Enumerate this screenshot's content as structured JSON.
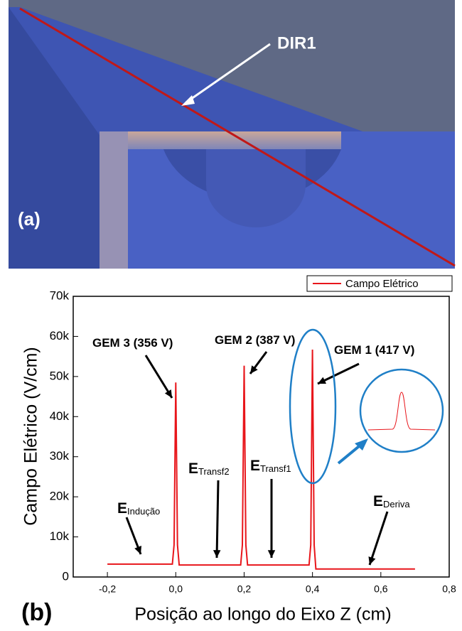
{
  "panel_a": {
    "label": "(a)",
    "line_label": "DIR1"
  },
  "chart_data": {
    "type": "line",
    "panel_label": "(b)",
    "xlabel": "Posição ao longo do Eixo Z (cm)",
    "ylabel": "Campo Elétrico (V/cm)",
    "x": [
      -0.2,
      -0.01,
      -0.005,
      0,
      0.005,
      0.01,
      0.19,
      0.195,
      0.2,
      0.205,
      0.21,
      0.39,
      0.395,
      0.4,
      0.405,
      0.41,
      0.7
    ],
    "series": [
      {
        "name": "Campo Elétrico",
        "color": "#e8161b",
        "values": [
          3200,
          3200,
          8000,
          48500,
          8000,
          3000,
          3000,
          8000,
          52700,
          8000,
          3000,
          3000,
          8000,
          56700,
          8000,
          2000,
          2000
        ]
      }
    ],
    "xlim": [
      -0.3,
      0.8
    ],
    "xticks": [
      {
        "value": -0.2,
        "label": "-0,2"
      },
      {
        "value": 0,
        "label": "0,0"
      },
      {
        "value": 0.2,
        "label": "0,2"
      },
      {
        "value": 0.4,
        "label": "0,4"
      },
      {
        "value": 0.6,
        "label": "0,6"
      },
      {
        "value": 0.8,
        "label": "0,8"
      }
    ],
    "ylim": [
      0,
      70000
    ],
    "yticks": [
      0,
      {
        "value": 10000,
        "label": "10k"
      },
      {
        "value": 20000,
        "label": "20k"
      },
      {
        "value": 30000,
        "label": "30k"
      },
      {
        "value": 40000,
        "label": "40k"
      },
      {
        "value": 50000,
        "label": "50k"
      },
      {
        "value": 60000,
        "label": "60k"
      },
      {
        "value": 70000,
        "label": "70k"
      }
    ],
    "legend": "top-right",
    "annotations": [
      {
        "text": "GEM 3 (356 V)"
      },
      {
        "text": "GEM 2 (387 V)"
      },
      {
        "text": "GEM 1 (417 V)"
      },
      {
        "text": "E",
        "sub": "Indução"
      },
      {
        "text": "E",
        "sub": "Transf2"
      },
      {
        "text": "E",
        "sub": "Transf1"
      },
      {
        "text": "E",
        "sub": "Deriva"
      }
    ]
  }
}
